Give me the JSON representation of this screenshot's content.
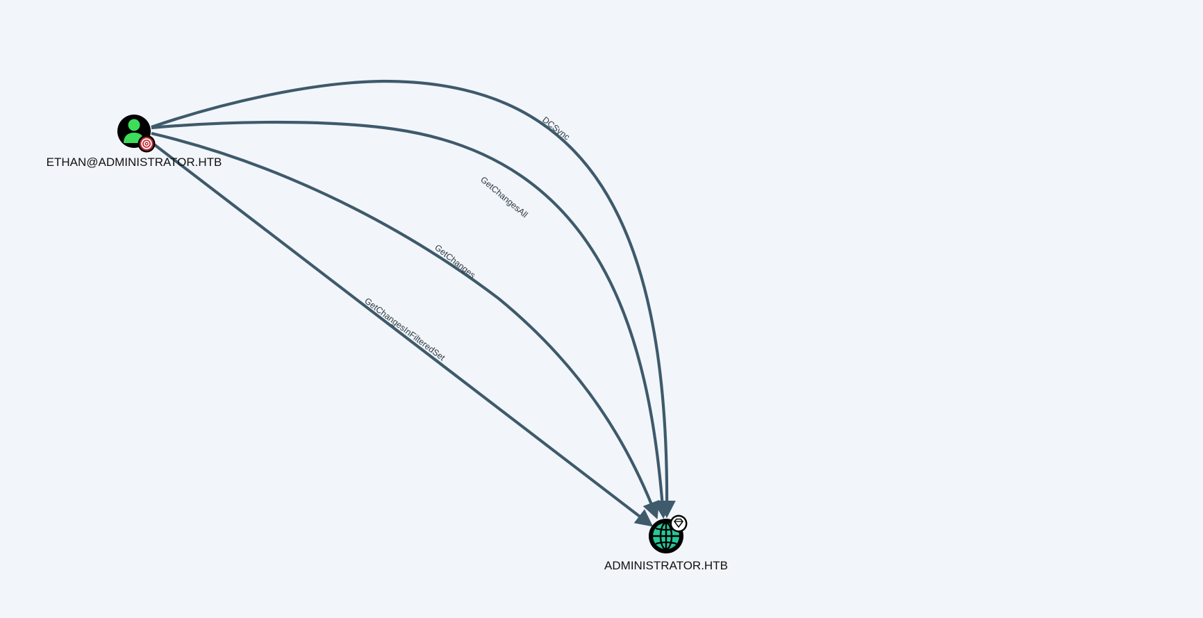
{
  "graph": {
    "nodes": [
      {
        "id": "user",
        "label": "ETHAN@ADMINISTRATOR.HTB",
        "type": "User",
        "badge": "owned-target-icon"
      },
      {
        "id": "domain",
        "label": "ADMINISTRATOR.HTB",
        "type": "Domain",
        "badge": "high-value-gem-icon"
      }
    ],
    "edges": [
      {
        "from": "user",
        "to": "domain",
        "label": "DCSync"
      },
      {
        "from": "user",
        "to": "domain",
        "label": "GetChangesAll"
      },
      {
        "from": "user",
        "to": "domain",
        "label": "GetChanges"
      },
      {
        "from": "user",
        "to": "domain",
        "label": "GetChangesInFilteredSet"
      }
    ]
  },
  "colors": {
    "background": "#f2f5fa",
    "edge": "#3e5a6b",
    "user_node": "#000000",
    "user_figure": "#3ddc5a",
    "domain_globe": "#27c79a",
    "owned_badge": "#c0282e"
  }
}
